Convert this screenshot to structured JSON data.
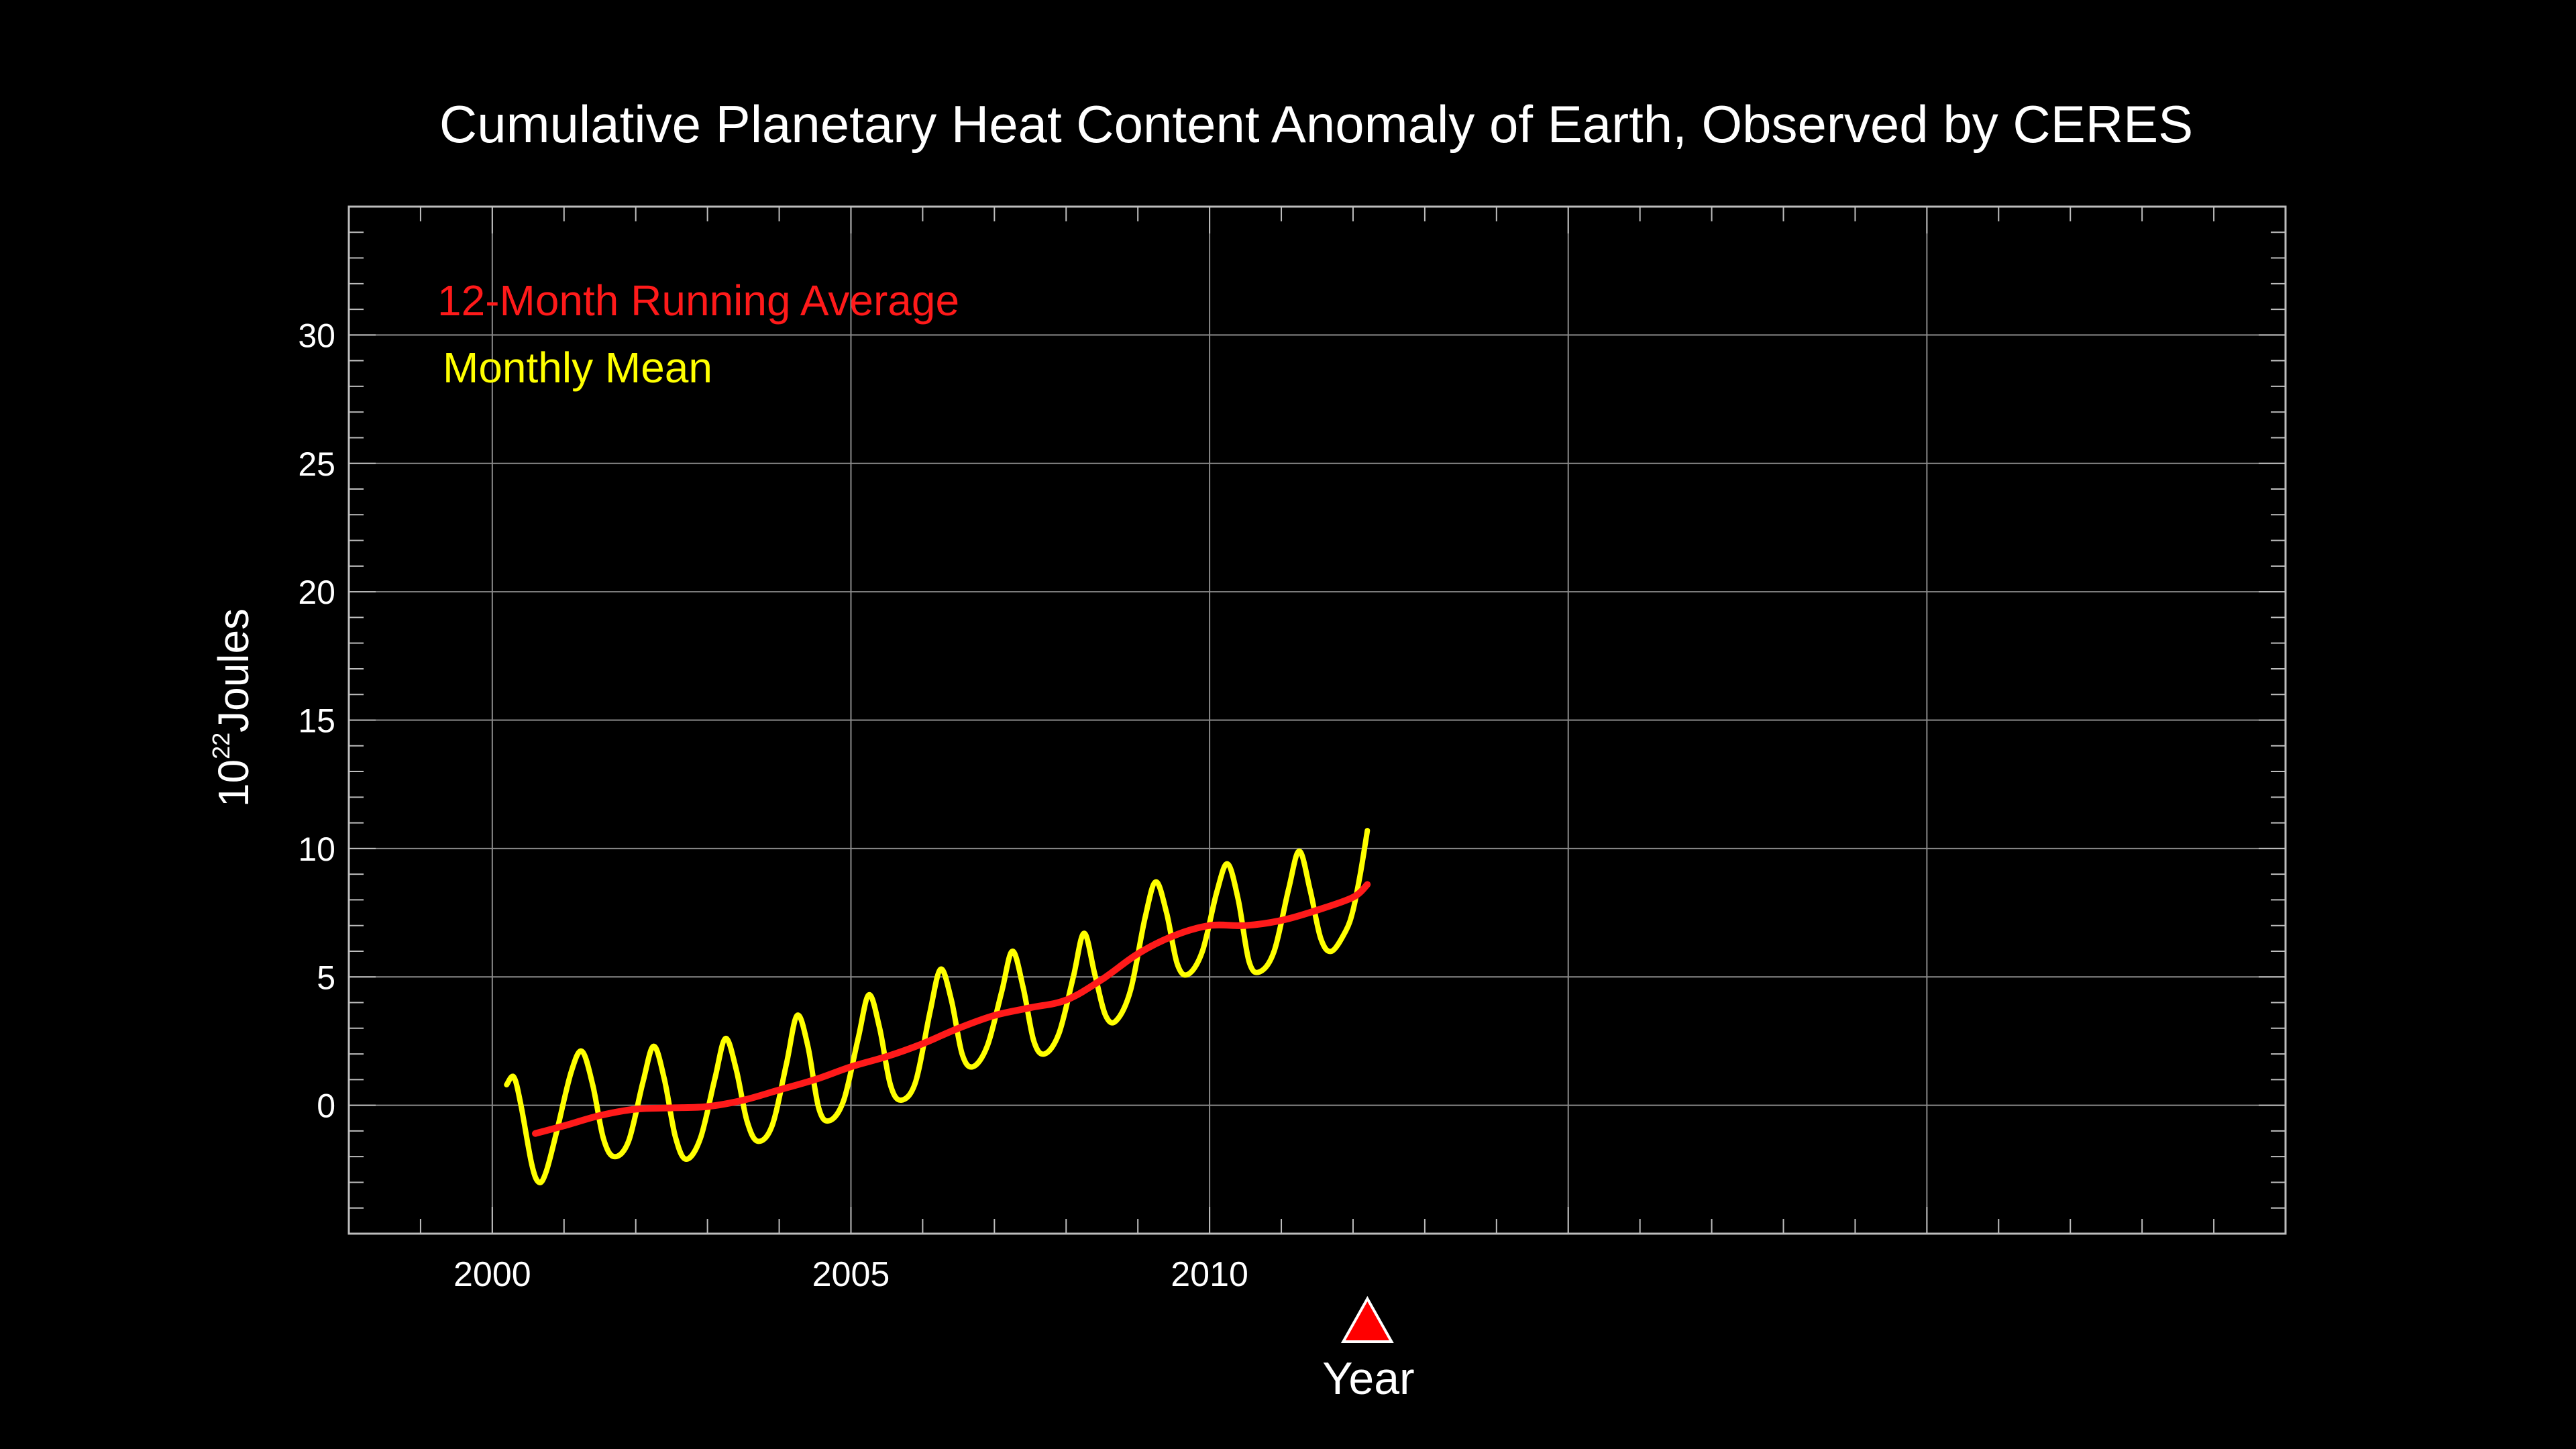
{
  "chart_data": {
    "type": "line",
    "title": "Cumulative Planetary Heat Content Anomaly of Earth, Observed by CERES",
    "xlabel": "Year",
    "ylabel": {
      "base": "10",
      "exponent": "22",
      "unit": "Joules"
    },
    "xlim": [
      1998,
      2025
    ],
    "ylim": [
      -5,
      35
    ],
    "x_ticks": [
      2000,
      2005,
      2010
    ],
    "y_ticks": [
      0,
      5,
      10,
      15,
      20,
      25,
      30
    ],
    "grid": true,
    "legend_position": "top-left",
    "marker": {
      "x": 2012.2,
      "shape": "triangle",
      "color": "#ff0000"
    },
    "series": [
      {
        "name": "12-Month Running Average",
        "color": "#ff1a1a",
        "x": [
          2000.6,
          2001.0,
          2001.5,
          2002.0,
          2002.5,
          2003.0,
          2003.5,
          2004.0,
          2004.5,
          2005.0,
          2005.5,
          2006.0,
          2006.5,
          2007.0,
          2007.5,
          2008.0,
          2008.5,
          2009.0,
          2009.5,
          2010.0,
          2010.5,
          2011.0,
          2011.5,
          2012.0,
          2012.2
        ],
        "y": [
          -1.1,
          -0.8,
          -0.4,
          -0.15,
          -0.1,
          -0.05,
          0.2,
          0.6,
          1.0,
          1.5,
          1.9,
          2.4,
          3.0,
          3.5,
          3.8,
          4.1,
          4.9,
          5.9,
          6.6,
          7.0,
          7.0,
          7.2,
          7.6,
          8.1,
          8.6
        ]
      },
      {
        "name": "Monthly Mean",
        "color": "#ffff00",
        "x": [
          2000.2,
          2000.3,
          2000.4,
          2000.55,
          2000.65,
          2000.75,
          2000.9,
          2001.1,
          2001.25,
          2001.4,
          2001.55,
          2001.7,
          2001.9,
          2002.1,
          2002.25,
          2002.4,
          2002.55,
          2002.7,
          2002.9,
          2003.1,
          2003.25,
          2003.4,
          2003.55,
          2003.7,
          2003.9,
          2004.1,
          2004.25,
          2004.4,
          2004.55,
          2004.7,
          2004.9,
          2005.1,
          2005.25,
          2005.4,
          2005.55,
          2005.7,
          2005.9,
          2006.1,
          2006.25,
          2006.4,
          2006.55,
          2006.7,
          2006.9,
          2007.1,
          2007.25,
          2007.4,
          2007.55,
          2007.7,
          2007.9,
          2008.1,
          2008.25,
          2008.4,
          2008.55,
          2008.7,
          2008.9,
          2009.1,
          2009.25,
          2009.4,
          2009.55,
          2009.7,
          2009.9,
          2010.1,
          2010.25,
          2010.4,
          2010.55,
          2010.7,
          2010.9,
          2011.1,
          2011.25,
          2011.4,
          2011.55,
          2011.7,
          2011.9,
          2012.0,
          2012.1,
          2012.2
        ],
        "y": [
          0.8,
          1.1,
          0.0,
          -2.3,
          -3.0,
          -2.6,
          -1.0,
          1.3,
          2.1,
          0.8,
          -1.3,
          -2.0,
          -1.4,
          0.9,
          2.3,
          1.0,
          -1.2,
          -2.1,
          -1.3,
          1.0,
          2.6,
          1.4,
          -0.6,
          -1.4,
          -0.8,
          1.6,
          3.5,
          2.3,
          -0.1,
          -0.6,
          0.2,
          2.6,
          4.3,
          3.0,
          0.8,
          0.2,
          0.9,
          3.6,
          5.3,
          4.1,
          2.0,
          1.5,
          2.3,
          4.4,
          6.0,
          4.6,
          2.5,
          2.0,
          2.8,
          5.0,
          6.7,
          5.1,
          3.5,
          3.3,
          4.5,
          7.3,
          8.7,
          7.5,
          5.5,
          5.1,
          6.0,
          8.3,
          9.4,
          8.0,
          5.6,
          5.2,
          6.0,
          8.4,
          9.9,
          8.4,
          6.5,
          6.0,
          6.8,
          7.6,
          9.0,
          10.7
        ]
      }
    ]
  }
}
